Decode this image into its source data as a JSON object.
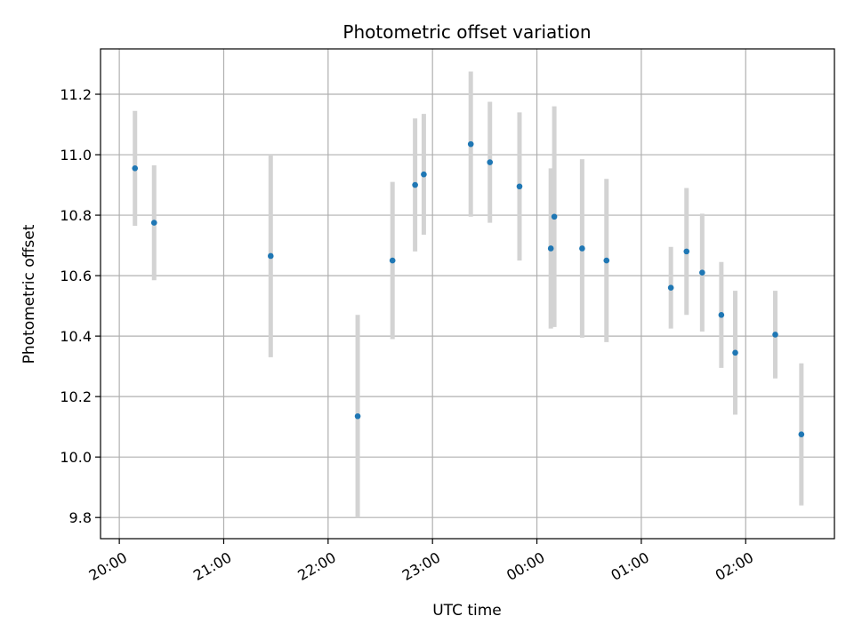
{
  "chart_data": {
    "type": "scatter",
    "title": "Photometric offset variation",
    "xlabel": "UTC time",
    "ylabel": "Photometric offset",
    "grid": true,
    "x_range": [
      "19:49",
      "02:52"
    ],
    "x_range_note": "x axis spans 19:49 on day 1 to 02:52 on day 2",
    "xlim": [
      -0.18,
      6.85
    ],
    "ylim": [
      9.73,
      11.35
    ],
    "x_ticks": [
      "20:00",
      "21:00",
      "22:00",
      "23:00",
      "00:00",
      "01:00",
      "02:00"
    ],
    "y_ticks": [
      "9.8",
      "10.0",
      "10.2",
      "10.4",
      "10.6",
      "10.8",
      "11.0",
      "11.2"
    ],
    "points": [
      {
        "x": "20:09",
        "y": 10.955,
        "yerr": 0.19
      },
      {
        "x": "20:20",
        "y": 10.775,
        "yerr": 0.19
      },
      {
        "x": "21:27",
        "y": 10.665,
        "yerr": 0.335
      },
      {
        "x": "22:17",
        "y": 10.135,
        "yerr": 0.335
      },
      {
        "x": "22:37",
        "y": 10.65,
        "yerr": 0.26
      },
      {
        "x": "22:50",
        "y": 10.9,
        "yerr": 0.22
      },
      {
        "x": "22:55",
        "y": 10.935,
        "yerr": 0.2
      },
      {
        "x": "23:22",
        "y": 11.035,
        "yerr": 0.24
      },
      {
        "x": "23:33",
        "y": 10.975,
        "yerr": 0.2
      },
      {
        "x": "23:50",
        "y": 10.895,
        "yerr": 0.245
      },
      {
        "x": "00:08",
        "y": 10.69,
        "yerr": 0.265
      },
      {
        "x": "00:10",
        "y": 10.795,
        "yerr": 0.365
      },
      {
        "x": "00:26",
        "y": 10.69,
        "yerr": 0.295
      },
      {
        "x": "00:40",
        "y": 10.65,
        "yerr": 0.27
      },
      {
        "x": "01:17",
        "y": 10.56,
        "yerr": 0.135
      },
      {
        "x": "01:26",
        "y": 10.68,
        "yerr": 0.21
      },
      {
        "x": "01:35",
        "y": 10.61,
        "yerr": 0.195
      },
      {
        "x": "01:46",
        "y": 10.47,
        "yerr": 0.175
      },
      {
        "x": "01:54",
        "y": 10.345,
        "yerr": 0.205
      },
      {
        "x": "02:17",
        "y": 10.405,
        "yerr": 0.145
      },
      {
        "x": "02:32",
        "y": 10.075,
        "yerr": 0.235
      }
    ],
    "point_color": "#1f77b4",
    "errorbar_color": "#d3d3d3",
    "grid_color": "#b0b0b0"
  }
}
